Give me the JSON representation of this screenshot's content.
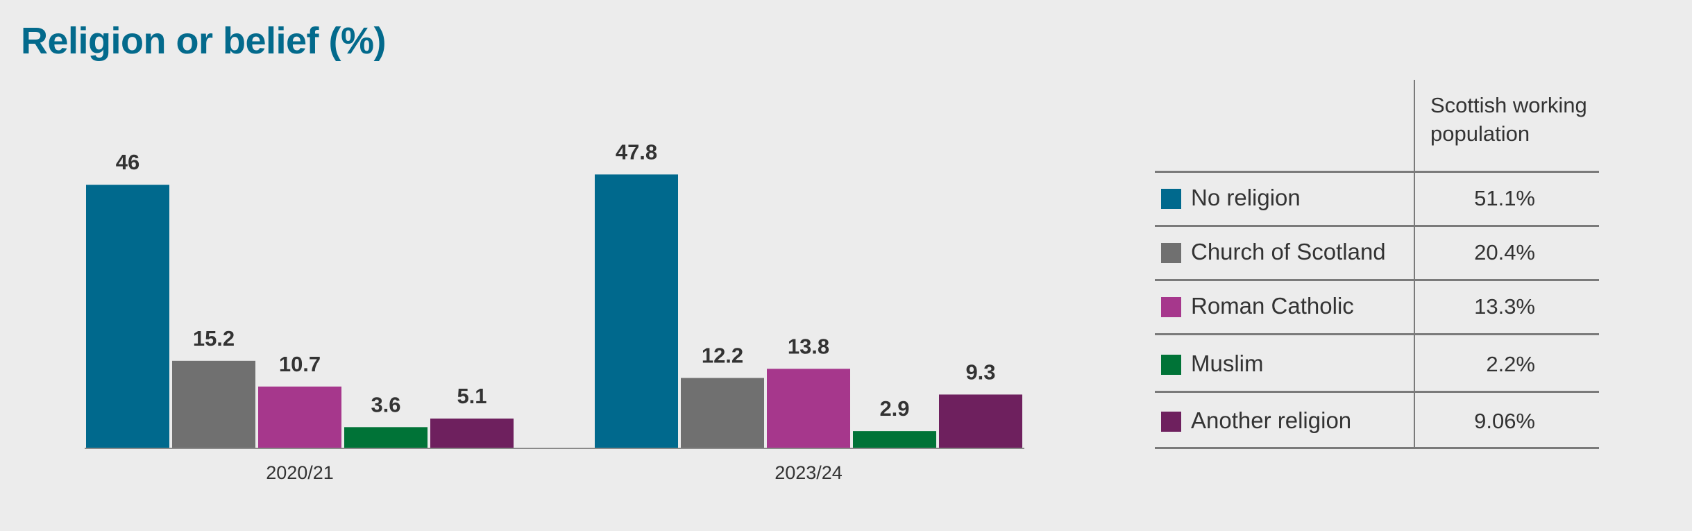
{
  "title": "Religion or belief (%)",
  "colors": {
    "No religion": "#00698d",
    "Church of Scotland": "#707070",
    "Roman Catholic": "#a6378c",
    "Muslim": "#007337",
    "Another religion": "#6e205e",
    "axis": "#8a8a8a"
  },
  "chart_data": {
    "type": "bar",
    "title": "Religion or belief (%)",
    "categories": [
      "2020/21",
      "2023/24"
    ],
    "series": [
      {
        "name": "No religion",
        "values": [
          46,
          47.8
        ]
      },
      {
        "name": "Church of Scotland",
        "values": [
          15.2,
          12.2
        ]
      },
      {
        "name": "Roman Catholic",
        "values": [
          10.7,
          13.8
        ]
      },
      {
        "name": "Muslim",
        "values": [
          3.6,
          2.9
        ]
      },
      {
        "name": "Another religion",
        "values": [
          5.1,
          9.3
        ]
      }
    ],
    "value_labels": [
      [
        "46",
        "47.8"
      ],
      [
        "15.2",
        "12.2"
      ],
      [
        "10.7",
        "13.8"
      ],
      [
        "3.6",
        "2.9"
      ],
      [
        "5.1",
        "9.3"
      ]
    ],
    "xlabel": "",
    "ylabel": "",
    "ylim": [
      0,
      50
    ],
    "grid": false,
    "legend": "right"
  },
  "legend_table": {
    "column_header": "Scottish working population",
    "rows": [
      {
        "label": "No religion",
        "value": "51.1%"
      },
      {
        "label": "Church of Scotland",
        "value": "20.4%"
      },
      {
        "label": "Roman Catholic",
        "value": "13.3%"
      },
      {
        "label": "Muslim",
        "value": "2.2%"
      },
      {
        "label": "Another religion",
        "value": "9.06%"
      }
    ]
  }
}
